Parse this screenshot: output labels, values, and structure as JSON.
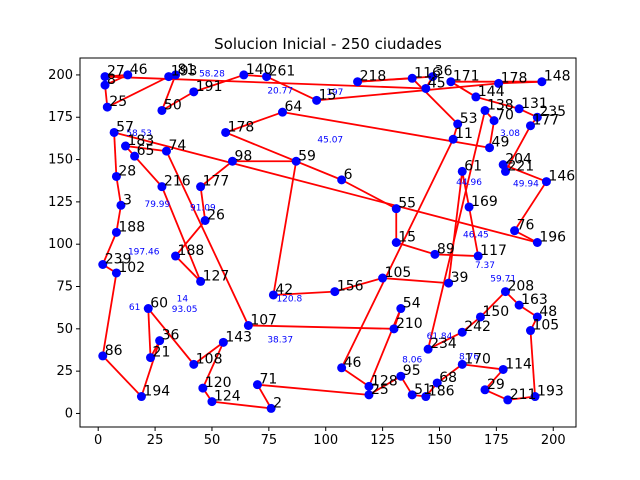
{
  "chart_data": {
    "type": "scatter",
    "title": "Solucion Inicial - 250 ciudades",
    "xlabel": "",
    "ylabel": "",
    "xlim": [
      -8,
      210
    ],
    "ylim": [
      -8,
      210
    ],
    "xticks": [
      0,
      25,
      50,
      75,
      100,
      125,
      150,
      175,
      200
    ],
    "yticks": [
      0,
      25,
      50,
      75,
      100,
      125,
      150,
      175,
      200
    ],
    "grid": false,
    "colors": {
      "edge": "#ff0000",
      "node": "#0000ff",
      "label": "#000000",
      "edge_label": "#0000ff"
    },
    "cities": [
      {
        "id": "27",
        "x": 3,
        "y": 199
      },
      {
        "id": "46",
        "x": 13,
        "y": 200
      },
      {
        "id": "8",
        "x": 3,
        "y": 194
      },
      {
        "id": "25",
        "x": 4,
        "y": 181
      },
      {
        "id": "193",
        "x": 31,
        "y": 199
      },
      {
        "id": "81",
        "x": 34,
        "y": 200
      },
      {
        "id": "50",
        "x": 28,
        "y": 179
      },
      {
        "id": "191",
        "x": 42,
        "y": 190
      },
      {
        "id": "140",
        "x": 64,
        "y": 200
      },
      {
        "id": "261",
        "x": 74,
        "y": 199
      },
      {
        "id": "15",
        "x": 96,
        "y": 185
      },
      {
        "id": "178",
        "x": 176,
        "y": 195
      },
      {
        "id": "148",
        "x": 195,
        "y": 196
      },
      {
        "id": "171",
        "x": 155,
        "y": 196
      },
      {
        "id": "144",
        "x": 166,
        "y": 187
      },
      {
        "id": "131",
        "x": 185,
        "y": 180
      },
      {
        "id": "235",
        "x": 193,
        "y": 175
      },
      {
        "id": "177",
        "x": 190,
        "y": 170
      },
      {
        "id": "221",
        "x": 179,
        "y": 143
      },
      {
        "id": "204",
        "x": 178,
        "y": 147
      },
      {
        "id": "146",
        "x": 197,
        "y": 137
      },
      {
        "id": "76",
        "x": 183,
        "y": 108
      },
      {
        "id": "196",
        "x": 193,
        "y": 101
      },
      {
        "id": "57",
        "x": 7,
        "y": 166
      },
      {
        "id": "28",
        "x": 8,
        "y": 140
      },
      {
        "id": "3",
        "x": 10,
        "y": 123
      },
      {
        "id": "188",
        "x": 8,
        "y": 107
      },
      {
        "id": "239",
        "x": 2,
        "y": 88
      },
      {
        "id": "102",
        "x": 8,
        "y": 83
      },
      {
        "id": "86",
        "x": 2,
        "y": 34
      },
      {
        "id": "194",
        "x": 19,
        "y": 10
      },
      {
        "id": "36",
        "x": 27,
        "y": 43
      },
      {
        "id": "21",
        "x": 23,
        "y": 33
      },
      {
        "id": "60",
        "x": 22,
        "y": 62
      },
      {
        "id": "108",
        "x": 42,
        "y": 29
      },
      {
        "id": "143",
        "x": 55,
        "y": 42
      },
      {
        "id": "120",
        "x": 46,
        "y": 15
      },
      {
        "id": "124",
        "x": 50,
        "y": 7
      },
      {
        "id": "2",
        "x": 76,
        "y": 3
      },
      {
        "id": "71",
        "x": 70,
        "y": 17
      },
      {
        "id": "25b",
        "x": 119,
        "y": 11
      },
      {
        "id": "95",
        "x": 133,
        "y": 22
      },
      {
        "id": "51",
        "x": 138,
        "y": 11
      },
      {
        "id": "186",
        "x": 144,
        "y": 10
      },
      {
        "id": "68",
        "x": 149,
        "y": 18
      },
      {
        "id": "170",
        "x": 160,
        "y": 29
      },
      {
        "id": "114",
        "x": 178,
        "y": 26
      },
      {
        "id": "29",
        "x": 170,
        "y": 14
      },
      {
        "id": "211",
        "x": 180,
        "y": 8
      },
      {
        "id": "193b",
        "x": 192,
        "y": 10
      },
      {
        "id": "105",
        "x": 190,
        "y": 49
      },
      {
        "id": "48",
        "x": 193,
        "y": 57
      },
      {
        "id": "163",
        "x": 185,
        "y": 64
      },
      {
        "id": "208",
        "x": 179,
        "y": 72
      },
      {
        "id": "150",
        "x": 168,
        "y": 57
      },
      {
        "id": "242",
        "x": 160,
        "y": 48
      },
      {
        "id": "234",
        "x": 145,
        "y": 38
      },
      {
        "id": "138",
        "x": 170,
        "y": 179
      },
      {
        "id": "70",
        "x": 174,
        "y": 173
      },
      {
        "id": "49",
        "x": 172,
        "y": 157
      },
      {
        "id": "64",
        "x": 81,
        "y": 178
      },
      {
        "id": "178b",
        "x": 56,
        "y": 166
      },
      {
        "id": "6",
        "x": 107,
        "y": 138
      },
      {
        "id": "55",
        "x": 131,
        "y": 121
      },
      {
        "id": "15b",
        "x": 131,
        "y": 101
      },
      {
        "id": "89",
        "x": 148,
        "y": 94
      },
      {
        "id": "117",
        "x": 167,
        "y": 93
      },
      {
        "id": "169",
        "x": 163,
        "y": 122
      },
      {
        "id": "61",
        "x": 160,
        "y": 143
      },
      {
        "id": "39",
        "x": 154,
        "y": 77
      },
      {
        "id": "105b",
        "x": 125,
        "y": 80
      },
      {
        "id": "156",
        "x": 104,
        "y": 72
      },
      {
        "id": "42",
        "x": 77,
        "y": 70
      },
      {
        "id": "59",
        "x": 87,
        "y": 149
      },
      {
        "id": "98",
        "x": 59,
        "y": 149
      },
      {
        "id": "177b",
        "x": 45,
        "y": 134
      },
      {
        "id": "26",
        "x": 47,
        "y": 114
      },
      {
        "id": "188b",
        "x": 34,
        "y": 93
      },
      {
        "id": "127",
        "x": 45,
        "y": 78
      },
      {
        "id": "216",
        "x": 28,
        "y": 134
      },
      {
        "id": "65",
        "x": 16,
        "y": 152
      },
      {
        "id": "183",
        "x": 12,
        "y": 158
      },
      {
        "id": "74",
        "x": 30,
        "y": 155
      },
      {
        "id": "107",
        "x": 66,
        "y": 52
      },
      {
        "id": "210",
        "x": 130,
        "y": 50
      },
      {
        "id": "54",
        "x": 133,
        "y": 62
      },
      {
        "id": "128",
        "x": 119,
        "y": 16
      },
      {
        "id": "46b",
        "x": 107,
        "y": 27
      },
      {
        "id": "11",
        "x": 156,
        "y": 162
      },
      {
        "id": "53",
        "x": 158,
        "y": 171
      },
      {
        "id": "116",
        "x": 138,
        "y": 198
      },
      {
        "id": "218",
        "x": 114,
        "y": 196
      },
      {
        "id": "36b",
        "x": 147,
        "y": 199
      },
      {
        "id": "45",
        "x": 144,
        "y": 192
      }
    ],
    "route": [
      "27",
      "46",
      "8",
      "25",
      "193",
      "81",
      "50",
      "191",
      "140",
      "261",
      "15",
      "178",
      "148",
      "171",
      "144",
      "131",
      "235",
      "177",
      "221",
      "204",
      "146",
      "76",
      "196",
      "57",
      "28",
      "3",
      "188",
      "239",
      "102",
      "86",
      "194",
      "36",
      "21",
      "60",
      "108",
      "143",
      "120",
      "124",
      "2",
      "71",
      "25b",
      "95",
      "51",
      "186",
      "68",
      "170",
      "114",
      "29",
      "211",
      "193b",
      "105",
      "48",
      "163",
      "208",
      "150",
      "242",
      "234",
      "138",
      "70",
      "49",
      "64",
      "178b",
      "6",
      "55",
      "15b",
      "89",
      "117",
      "169",
      "61",
      "39",
      "105b",
      "156",
      "42",
      "59",
      "98",
      "177b",
      "26",
      "188b",
      "127",
      "216",
      "65",
      "183",
      "74",
      "107",
      "210",
      "54",
      "128",
      "46b",
      "11",
      "53",
      "116",
      "218",
      "36b",
      "45",
      "27"
    ],
    "edge_labels": [
      {
        "text": "58.28",
        "x": 50,
        "y": 199
      },
      {
        "text": "20.77",
        "x": 80,
        "y": 189
      },
      {
        "text": "197",
        "x": 104,
        "y": 188
      },
      {
        "text": "49.94",
        "x": 188,
        "y": 134
      },
      {
        "text": "79.99",
        "x": 26,
        "y": 122
      },
      {
        "text": "197.46",
        "x": 20,
        "y": 94
      },
      {
        "text": "14",
        "x": 37,
        "y": 66
      },
      {
        "text": "61",
        "x": 16,
        "y": 61
      },
      {
        "text": "93.05",
        "x": 38,
        "y": 60
      },
      {
        "text": "8.06",
        "x": 138,
        "y": 30
      },
      {
        "text": "8.76",
        "x": 163,
        "y": 32
      },
      {
        "text": "59.71",
        "x": 178,
        "y": 78
      },
      {
        "text": "7.37",
        "x": 170,
        "y": 86
      },
      {
        "text": "46.45",
        "x": 166,
        "y": 104
      },
      {
        "text": "44.96",
        "x": 163,
        "y": 135
      },
      {
        "text": "3.08",
        "x": 181,
        "y": 164
      },
      {
        "text": "58.53",
        "x": 18,
        "y": 164
      },
      {
        "text": "45.07",
        "x": 102,
        "y": 160
      },
      {
        "text": "120.8",
        "x": 84,
        "y": 66
      },
      {
        "text": "61.84",
        "x": 150,
        "y": 44
      },
      {
        "text": "38.37",
        "x": 80,
        "y": 42
      },
      {
        "text": "91.09",
        "x": 46,
        "y": 120
      }
    ]
  }
}
